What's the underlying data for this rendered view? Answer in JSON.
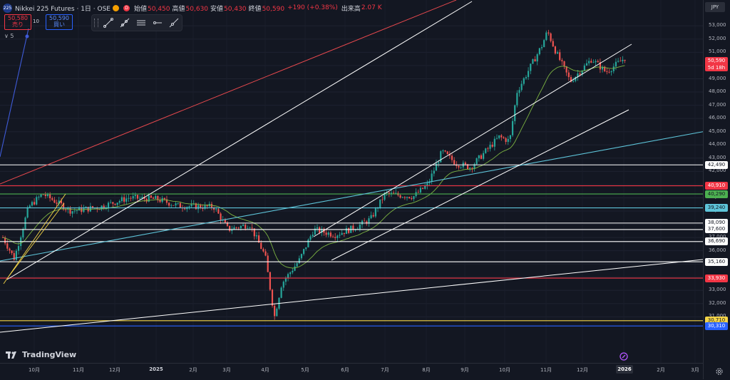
{
  "header": {
    "symbol_badge": "225",
    "title": "Nikkei 225 Futures · 1日 · OSE",
    "ohlc": [
      {
        "k": "始値",
        "v": "50,450"
      },
      {
        "k": "高値",
        "v": "50,630"
      },
      {
        "k": "安値",
        "v": "50,430"
      },
      {
        "k": "終値",
        "v": "50,590"
      }
    ],
    "change": "+190 (+0.38%)",
    "volume_label": "出来高",
    "volume_value": "2.07 K"
  },
  "trade": {
    "sell_price": "50,580",
    "sell_label": "売り",
    "spread": "10",
    "buy_price": "50,590",
    "buy_label": "買い"
  },
  "indicator_count": "5",
  "currency": "JPY",
  "price_ticks": [
    "53,000",
    "52,000",
    "51,000",
    "50,000",
    "49,000",
    "48,000",
    "47,000",
    "46,000",
    "45,000",
    "44,000",
    "43,000",
    "42,000",
    "41,000",
    "40,000",
    "39,000",
    "38,000",
    "37,000",
    "36,000",
    "35,000",
    "34,000",
    "33,000",
    "32,000",
    "31,000"
  ],
  "price_labels": [
    {
      "text": "42,490",
      "color": "#ffffff",
      "text_color": "#131722"
    },
    {
      "text": "40,910",
      "color": "#f23645",
      "text_color": "#ffffff"
    },
    {
      "text": "40,290",
      "color": "#4caf50",
      "text_color": "#131722"
    },
    {
      "text": "39,240",
      "color": "#5ec4d9",
      "text_color": "#131722"
    },
    {
      "text": "38,090",
      "color": "#ffffff",
      "text_color": "#131722"
    },
    {
      "text": "37,600",
      "color": "#ffffff",
      "text_color": "#131722"
    },
    {
      "text": "36,690",
      "color": "#ffffff",
      "text_color": "#131722"
    },
    {
      "text": "35,160",
      "color": "#ffffff",
      "text_color": "#131722"
    },
    {
      "text": "33,930",
      "color": "#f23645",
      "text_color": "#ffffff"
    },
    {
      "text": "30,710",
      "color": "#f5d547",
      "text_color": "#131722"
    },
    {
      "text": "30,310",
      "color": "#2962ff",
      "text_color": "#ffffff"
    }
  ],
  "current_price": {
    "value": "50,590",
    "countdown": "5d 18h"
  },
  "x_ticks": [
    "10月",
    "11月",
    "12月",
    "2025",
    "2月",
    "3月",
    "4月",
    "5月",
    "6月",
    "7月",
    "8月",
    "9月",
    "10月",
    "11月",
    "12月",
    "2026",
    "2月",
    "3月"
  ],
  "x_highlight": "2026",
  "logo_text": "TradingView",
  "colors": {
    "background": "#131722",
    "up": "#26a69a",
    "down": "#ef5350",
    "ma": "#7cb342"
  },
  "icons": {
    "toolbar": [
      "trend-line-icon",
      "ray-icon",
      "parallel-channel-icon",
      "horizontal-line-icon",
      "extended-line-icon"
    ],
    "settings": "gear-icon"
  }
}
